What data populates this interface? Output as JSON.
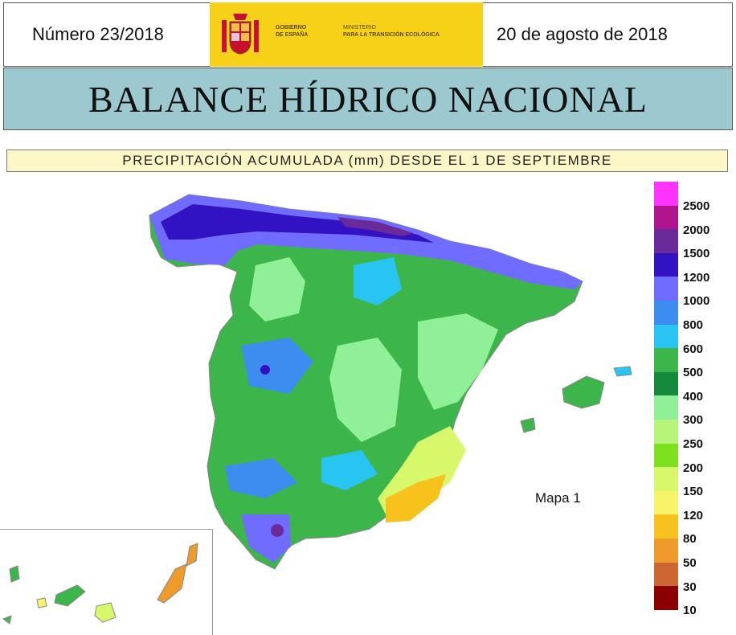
{
  "header": {
    "issue": "Número 23/2018",
    "date": "20 de agosto de 2018",
    "logo": {
      "gov_line1": "GOBIERNO",
      "gov_line2": "DE ESPAÑA",
      "ministry_line1": "MINISTERIO",
      "ministry_line2": "PARA LA TRANSICIÓN ECOLÓGICA",
      "background": "#f7d117"
    }
  },
  "title": "BALANCE HÍDRICO NACIONAL",
  "subtitle": "PRECIPITACIÓN ACUMULADA (mm) DESDE EL 1 DE SEPTIEMBRE",
  "map": {
    "label": "Mapa 1"
  },
  "legend": [
    {
      "label": "2500",
      "color": "#ff33ff"
    },
    {
      "label": "2000",
      "color": "#b0158f"
    },
    {
      "label": "1500",
      "color": "#6a2a9a"
    },
    {
      "label": "1200",
      "color": "#3312c4"
    },
    {
      "label": "1000",
      "color": "#6f6cff"
    },
    {
      "label": "800",
      "color": "#3d8cf0"
    },
    {
      "label": "600",
      "color": "#29c5f2"
    },
    {
      "label": "500",
      "color": "#3cb54a"
    },
    {
      "label": "400",
      "color": "#168a3c"
    },
    {
      "label": "300",
      "color": "#8ff098"
    },
    {
      "label": "250",
      "color": "#b7f57a"
    },
    {
      "label": "200",
      "color": "#7ee11f"
    },
    {
      "label": "150",
      "color": "#d7f86a"
    },
    {
      "label": "120",
      "color": "#f7f46a"
    },
    {
      "label": "80",
      "color": "#f6c21b"
    },
    {
      "label": "50",
      "color": "#ee9b2c"
    },
    {
      "label": "30",
      "color": "#cc6633"
    },
    {
      "label": "10",
      "color": "#8b0000"
    }
  ]
}
